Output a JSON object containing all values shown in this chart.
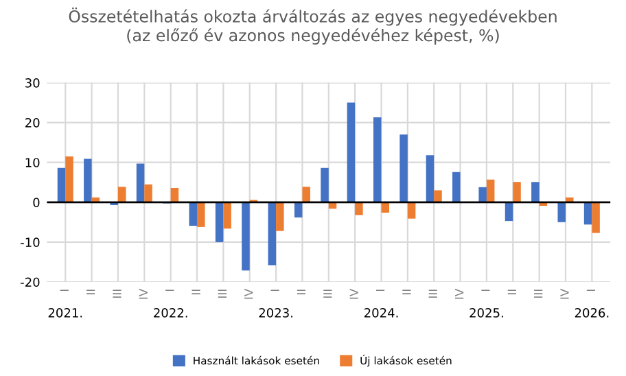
{
  "chart_data": {
    "type": "bar",
    "title": "Összetételhatás okozta árváltozás az egyes negyedévekben\n(az előző év azonos negyedévéhez képest, %)",
    "categories": [
      "I",
      "II",
      "III",
      "IV",
      "I",
      "II",
      "III",
      "IV",
      "I",
      "II",
      "III",
      "IV",
      "I",
      "II",
      "III",
      "IV",
      "I",
      "II",
      "III",
      "IV",
      "I"
    ],
    "series": [
      {
        "name": "Használt lakások esetén",
        "color": "#4472c4",
        "values": [
          8.6,
          10.9,
          -0.7,
          9.7,
          -0.3,
          -5.9,
          -10,
          -17.1,
          -15.8,
          -3.8,
          8.6,
          25,
          21.3,
          17,
          11.8,
          7.6,
          3.8,
          -4.7,
          5.1,
          -5.0,
          -5.6
        ]
      },
      {
        "name": "Új lakások esetén",
        "color": "#ed7d31",
        "values": [
          11.5,
          1.2,
          3.9,
          4.5,
          3.6,
          -6.2,
          -6.6,
          0.6,
          -7.2,
          3.9,
          -1.6,
          -3.2,
          -2.6,
          -4.1,
          3.0,
          null,
          5.7,
          5.1,
          -0.9,
          1.2,
          -7.7
        ]
      }
    ],
    "annotations": [
      "2021.",
      "2022.",
      "2023.",
      "2024.",
      "2025.",
      "2026."
    ],
    "ylim": [
      -20,
      30
    ],
    "yticks": [
      -20,
      -10,
      0,
      10,
      20,
      30
    ],
    "grid": true,
    "legend": "bottom"
  }
}
